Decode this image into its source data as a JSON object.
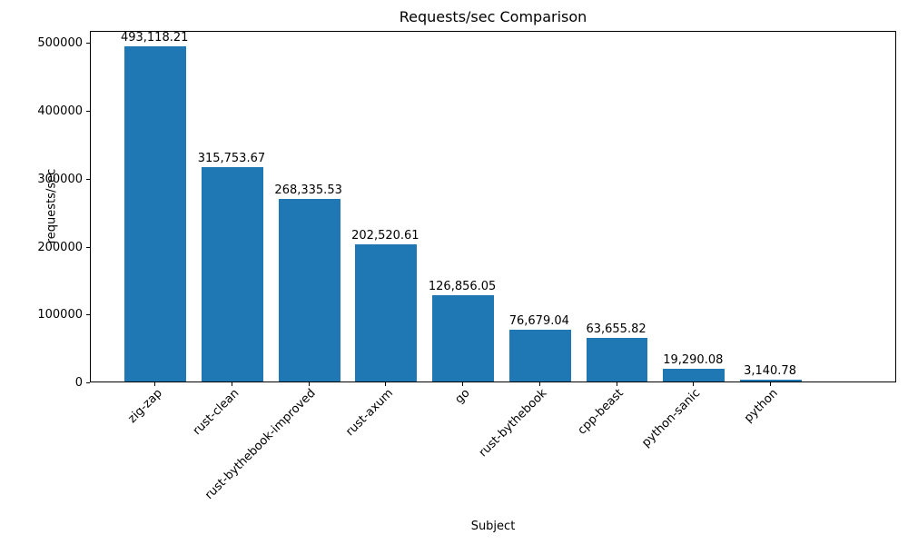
{
  "chart_data": {
    "type": "bar",
    "title": "Requests/sec Comparison",
    "xlabel": "Subject",
    "ylabel": "requests/sec",
    "categories": [
      "zig-zap",
      "rust-clean",
      "rust-bythebook-improved",
      "rust-axum",
      "go",
      "rust-bythebook",
      "cpp-beast",
      "python-sanic",
      "python"
    ],
    "values": [
      493118.21,
      315753.67,
      268335.53,
      202520.61,
      126856.05,
      76679.04,
      63655.82,
      19290.08,
      3140.78
    ],
    "value_labels": [
      "493,118.21",
      "315,753.67",
      "268,335.53",
      "202,520.61",
      "126,856.05",
      "76,679.04",
      "63,655.82",
      "19,290.08",
      "3,140.78"
    ],
    "yticks": [
      0,
      100000,
      200000,
      300000,
      400000,
      500000
    ],
    "ytick_labels": [
      "0",
      "100000",
      "200000",
      "300000",
      "400000",
      "500000"
    ],
    "ylim": [
      0,
      517774
    ],
    "bar_color": "#1f77b4",
    "grid": false,
    "legend": "none",
    "x_tick_label_rotation_deg": 45
  }
}
